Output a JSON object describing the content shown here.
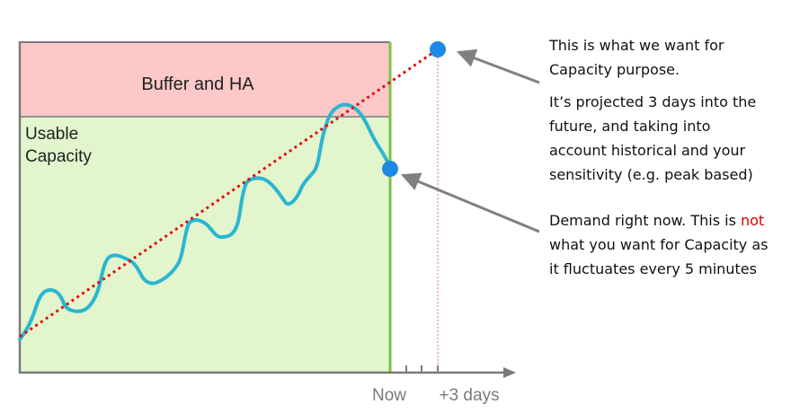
{
  "colors": {
    "buffer_fill": "#fcc8c8",
    "usable_fill": "#e2f5cd",
    "demand_line": "#2ab6d0",
    "trend_line": "#e01010",
    "point": "#1e88e5",
    "now_line": "#7cc243",
    "axis": "#7a7a7a",
    "arrow": "#808080",
    "guide": "#e87070"
  },
  "regions": {
    "buffer_label": "Buffer and HA",
    "usable_label": [
      "Usable",
      "Capacity"
    ]
  },
  "axis": {
    "now_label": "Now",
    "future_label": "+3 days"
  },
  "annotations": {
    "capacity_lines": [
      "This is what we want for",
      "Capacity purpose."
    ],
    "projection_lines": [
      "It’s projected 3 days into the",
      "future, and taking into",
      "account historical and your",
      "sensitivity (e.g. peak based)"
    ],
    "demand_line_1_before": "Demand right now. This is ",
    "demand_line_1_highlight": "not",
    "demand_line_2": "what you want for Capacity as",
    "demand_line_3": "it fluctuates every 5 minutes"
  }
}
